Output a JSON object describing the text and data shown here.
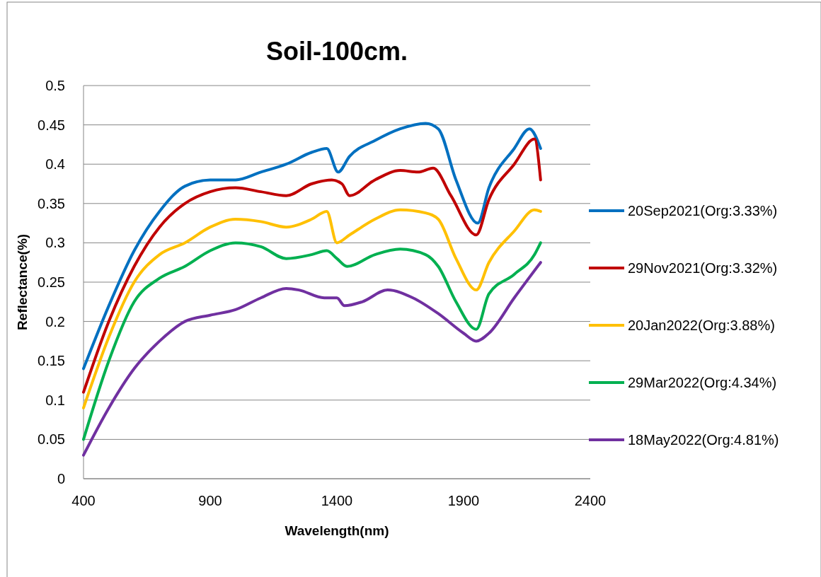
{
  "chart_data": {
    "type": "line",
    "title": "Soil-100cm.",
    "xlabel": "Wavelength(nm)",
    "ylabel": "Reflectance(%)",
    "xlim": [
      400,
      2400
    ],
    "xticks": [
      400,
      900,
      1400,
      1900,
      2400
    ],
    "ylim": [
      0,
      0.5
    ],
    "yticks": [
      0,
      0.05,
      0.1,
      0.15,
      0.2,
      0.25,
      0.3,
      0.35,
      0.4,
      0.45,
      0.5
    ],
    "grid": "y",
    "legend": "right",
    "marker": "none",
    "line_style": "solid",
    "series": [
      {
        "name": "20Sep2021(Org:3.33%)",
        "color": "#0070c0",
        "x": [
          400,
          500,
          600,
          700,
          800,
          900,
          1000,
          1100,
          1200,
          1300,
          1360,
          1405,
          1450,
          1550,
          1650,
          1750,
          1800,
          1870,
          1956,
          2000,
          2100,
          2160,
          2204
        ],
        "values": [
          0.14,
          0.22,
          0.29,
          0.34,
          0.372,
          0.38,
          0.38,
          0.39,
          0.4,
          0.415,
          0.42,
          0.39,
          0.41,
          0.43,
          0.445,
          0.452,
          0.445,
          0.38,
          0.325,
          0.37,
          0.42,
          0.445,
          0.42
        ]
      },
      {
        "name": "29Nov2021(Org:3.32%)",
        "color": "#c00000",
        "x": [
          400,
          500,
          600,
          700,
          800,
          900,
          1000,
          1100,
          1200,
          1300,
          1380,
          1420,
          1450,
          1550,
          1650,
          1720,
          1780,
          1850,
          1950,
          2000,
          2100,
          2180,
          2204
        ],
        "values": [
          0.11,
          0.2,
          0.27,
          0.32,
          0.35,
          0.365,
          0.37,
          0.365,
          0.36,
          0.375,
          0.38,
          0.375,
          0.36,
          0.38,
          0.392,
          0.39,
          0.395,
          0.36,
          0.31,
          0.355,
          0.4,
          0.432,
          0.38
        ]
      },
      {
        "name": "20Jan2022(Org:3.88%)",
        "color": "#ffc000",
        "x": [
          400,
          500,
          600,
          700,
          800,
          900,
          1000,
          1100,
          1200,
          1300,
          1360,
          1400,
          1450,
          1550,
          1650,
          1750,
          1800,
          1870,
          1950,
          2000,
          2100,
          2180,
          2204
        ],
        "values": [
          0.09,
          0.18,
          0.25,
          0.285,
          0.3,
          0.32,
          0.33,
          0.327,
          0.32,
          0.33,
          0.34,
          0.3,
          0.31,
          0.33,
          0.342,
          0.338,
          0.33,
          0.28,
          0.24,
          0.275,
          0.315,
          0.342,
          0.34
        ]
      },
      {
        "name": "29Mar2022(Org:4.34%)",
        "color": "#00b050",
        "x": [
          400,
          500,
          600,
          700,
          800,
          900,
          1000,
          1100,
          1200,
          1300,
          1360,
          1400,
          1440,
          1550,
          1650,
          1750,
          1800,
          1870,
          1950,
          2000,
          2100,
          2180,
          2204
        ],
        "values": [
          0.05,
          0.15,
          0.225,
          0.255,
          0.27,
          0.29,
          0.3,
          0.295,
          0.28,
          0.285,
          0.29,
          0.28,
          0.27,
          0.285,
          0.292,
          0.285,
          0.27,
          0.225,
          0.19,
          0.235,
          0.26,
          0.285,
          0.3
        ]
      },
      {
        "name": "18May2022(Org:4.81%)",
        "color": "#7030a0",
        "x": [
          400,
          500,
          600,
          700,
          800,
          900,
          1000,
          1100,
          1200,
          1250,
          1350,
          1400,
          1430,
          1500,
          1600,
          1700,
          1800,
          1900,
          1950,
          2000,
          2100,
          2204
        ],
        "values": [
          0.03,
          0.09,
          0.14,
          0.175,
          0.2,
          0.208,
          0.215,
          0.23,
          0.242,
          0.24,
          0.23,
          0.23,
          0.22,
          0.225,
          0.24,
          0.23,
          0.21,
          0.185,
          0.175,
          0.185,
          0.23,
          0.275
        ]
      }
    ]
  }
}
